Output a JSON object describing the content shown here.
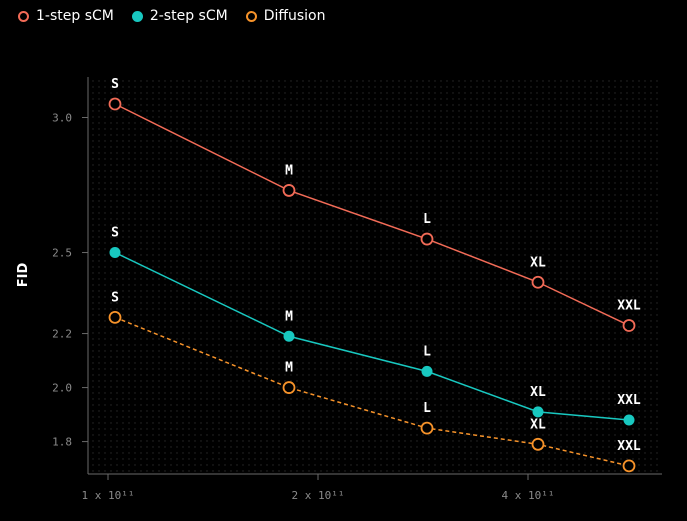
{
  "chart_data": {
    "type": "line",
    "ylabel": "FID",
    "xlabel": "",
    "x_ticks": [
      "1 x 10¹¹",
      "2 x 10¹¹",
      "4 x 10¹¹"
    ],
    "y_ticks": [
      3.0,
      2.5,
      2.2,
      2.0,
      1.8
    ],
    "ylim": [
      1.68,
      3.15
    ],
    "grid": true,
    "legend_position": "top-left",
    "series": [
      {
        "name": "1-step sCM",
        "color": "#f26b57",
        "style": "solid",
        "marker": "hollow",
        "labels": [
          "S",
          "M",
          "L",
          "XL",
          "XXL"
        ],
        "values": [
          3.05,
          2.73,
          2.55,
          2.39,
          2.23
        ]
      },
      {
        "name": "2-step sCM",
        "color": "#18c8c0",
        "style": "solid",
        "marker": "filled",
        "labels": [
          "S",
          "M",
          "L",
          "XL",
          "XXL"
        ],
        "values": [
          2.5,
          2.19,
          2.06,
          1.91,
          1.88
        ]
      },
      {
        "name": "Diffusion",
        "color": "#f7932a",
        "style": "dashed",
        "marker": "hollow",
        "labels": [
          "S",
          "M",
          "L",
          "XL",
          "XXL"
        ],
        "values": [
          2.26,
          2.0,
          1.85,
          1.79,
          1.71
        ]
      }
    ]
  }
}
